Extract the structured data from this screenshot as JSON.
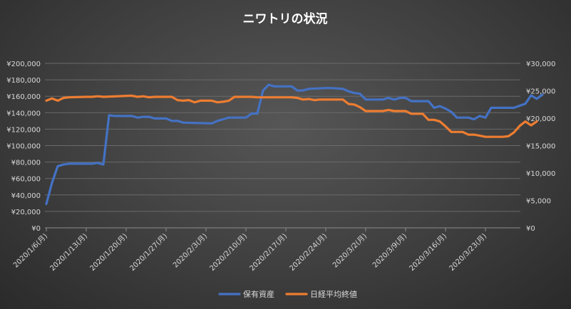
{
  "chart_data": {
    "type": "line",
    "title": "ニワトリの状況",
    "x_tick_labels": [
      "2020/1/6(月)",
      "2020/1/13(月)",
      "2020/1/20(月)",
      "2020/1/27(月)",
      "2020/2/3(月)",
      "2020/2/10(月)",
      "2020/2/17(月)",
      "2020/2/24(月)",
      "2020/3/2(月)",
      "2020/3/9(月)",
      "2020/3/16(月)",
      "2020/3/23(月)"
    ],
    "x_range_days": [
      0,
      85
    ],
    "y_left": {
      "ticks": [
        0,
        20000,
        40000,
        60000,
        80000,
        100000,
        120000,
        140000,
        160000,
        180000,
        200000
      ],
      "tick_labels": [
        "¥0",
        "¥20,000",
        "¥40,000",
        "¥60,000",
        "¥80,000",
        "¥100,000",
        "¥120,000",
        "¥140,000",
        "¥160,000",
        "¥180,000",
        "¥200,000"
      ],
      "ylim": [
        0,
        200000
      ]
    },
    "y_right": {
      "ticks": [
        0,
        5000,
        10000,
        15000,
        20000,
        25000,
        30000
      ],
      "tick_labels": [
        "¥0",
        "¥5,000",
        "¥10,000",
        "¥15,000",
        "¥20,000",
        "¥25,000",
        "¥30,000"
      ],
      "ylim": [
        0,
        30000
      ]
    },
    "grid": "horizontal",
    "legend_position": "bottom",
    "series": [
      {
        "name": "保有資産",
        "axis": "left",
        "color": "#4472c4",
        "points": [
          [
            0,
            29000
          ],
          [
            1,
            55000
          ],
          [
            2,
            75000
          ],
          [
            3,
            77000
          ],
          [
            4,
            78000
          ],
          [
            6,
            78000
          ],
          [
            8,
            78000
          ],
          [
            9,
            79000
          ],
          [
            10,
            77000
          ],
          [
            11,
            137000
          ],
          [
            12,
            136000
          ],
          [
            15,
            136000
          ],
          [
            16,
            134000
          ],
          [
            17,
            135000
          ],
          [
            18,
            135000
          ],
          [
            19,
            133000
          ],
          [
            21,
            133000
          ],
          [
            22,
            130000
          ],
          [
            23,
            130000
          ],
          [
            24,
            128000
          ],
          [
            29,
            127000
          ],
          [
            30,
            130000
          ],
          [
            31,
            132000
          ],
          [
            32,
            134000
          ],
          [
            33,
            134000
          ],
          [
            35,
            134000
          ],
          [
            36,
            139000
          ],
          [
            37,
            139000
          ],
          [
            38,
            167000
          ],
          [
            39,
            174000
          ],
          [
            40,
            172000
          ],
          [
            43,
            172000
          ],
          [
            44,
            167000
          ],
          [
            45,
            167000
          ],
          [
            46,
            169000
          ],
          [
            49,
            170000
          ],
          [
            50,
            170000
          ],
          [
            52,
            169000
          ],
          [
            53,
            166000
          ],
          [
            54,
            164000
          ],
          [
            55,
            163000
          ],
          [
            56,
            156000
          ],
          [
            59,
            156000
          ],
          [
            60,
            158000
          ],
          [
            61,
            156000
          ],
          [
            62,
            158000
          ],
          [
            63,
            158000
          ],
          [
            64,
            154000
          ],
          [
            67,
            154000
          ],
          [
            68,
            146000
          ],
          [
            69,
            148000
          ],
          [
            70,
            145000
          ],
          [
            71,
            141000
          ],
          [
            72,
            134000
          ],
          [
            74,
            134000
          ],
          [
            75,
            132000
          ],
          [
            76,
            136000
          ],
          [
            77,
            134000
          ],
          [
            78,
            146000
          ],
          [
            79,
            146000
          ],
          [
            82,
            146000
          ],
          [
            84,
            151000
          ],
          [
            85,
            161000
          ],
          [
            86,
            157000
          ],
          [
            87,
            162000
          ]
        ]
      },
      {
        "name": "日経平均終値",
        "axis": "right",
        "color": "#ed7d31",
        "points": [
          [
            0,
            23200
          ],
          [
            1,
            23600
          ],
          [
            2,
            23200
          ],
          [
            3,
            23700
          ],
          [
            4,
            23800
          ],
          [
            7,
            23900
          ],
          [
            8,
            23900
          ],
          [
            9,
            24000
          ],
          [
            10,
            23900
          ],
          [
            15,
            24100
          ],
          [
            16,
            23900
          ],
          [
            17,
            24000
          ],
          [
            18,
            23800
          ],
          [
            19,
            23900
          ],
          [
            22,
            23900
          ],
          [
            23,
            23300
          ],
          [
            24,
            23200
          ],
          [
            25,
            23300
          ],
          [
            26,
            22900
          ],
          [
            27,
            23200
          ],
          [
            29,
            23200
          ],
          [
            30,
            22900
          ],
          [
            31,
            23000
          ],
          [
            32,
            23200
          ],
          [
            33,
            23900
          ],
          [
            36,
            23900
          ],
          [
            37,
            23800
          ],
          [
            43,
            23800
          ],
          [
            44,
            23700
          ],
          [
            45,
            23400
          ],
          [
            46,
            23500
          ],
          [
            47,
            23300
          ],
          [
            48,
            23400
          ],
          [
            52,
            23400
          ],
          [
            53,
            22600
          ],
          [
            54,
            22500
          ],
          [
            55,
            22000
          ],
          [
            56,
            21300
          ],
          [
            59,
            21300
          ],
          [
            60,
            21500
          ],
          [
            61,
            21300
          ],
          [
            63,
            21300
          ],
          [
            64,
            20800
          ],
          [
            66,
            20800
          ],
          [
            67,
            19700
          ],
          [
            68,
            19700
          ],
          [
            69,
            19400
          ],
          [
            70,
            18500
          ],
          [
            71,
            17500
          ],
          [
            73,
            17500
          ],
          [
            74,
            17000
          ],
          [
            75,
            17000
          ],
          [
            76,
            16800
          ],
          [
            77,
            16600
          ],
          [
            80,
            16600
          ],
          [
            81,
            16700
          ],
          [
            82,
            17400
          ],
          [
            83,
            18600
          ],
          [
            84,
            19400
          ],
          [
            85,
            18700
          ],
          [
            86,
            19400
          ]
        ]
      }
    ]
  }
}
